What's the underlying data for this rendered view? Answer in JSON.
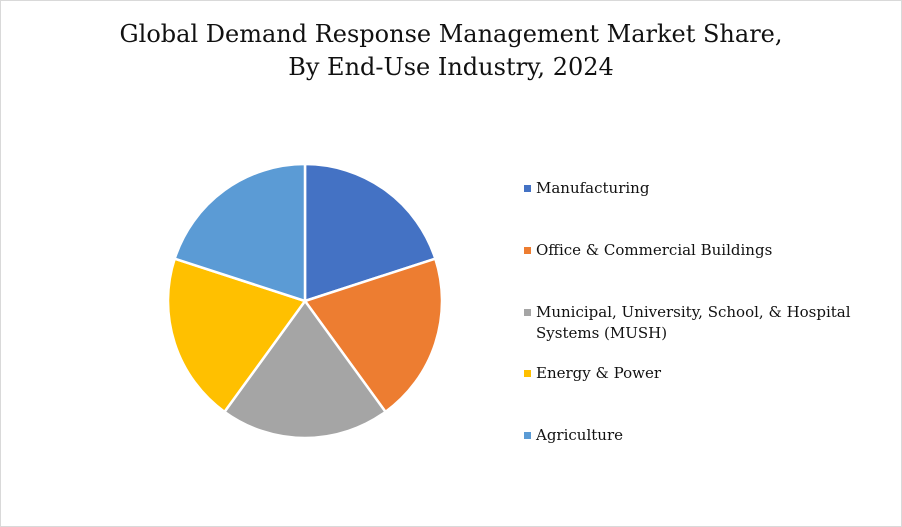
{
  "chart_data": {
    "type": "pie",
    "title": "Global Demand Response Management Market Share, By End-Use Industry, 2024",
    "title_lines": [
      "Global Demand Response Management Market Share,",
      "By End-Use Industry, 2024"
    ],
    "categories": [
      "Manufacturing",
      "Office & Commercial Buildings",
      "Municipal, University, School, & Hospital Systems (MUSH)",
      "Energy & Power",
      "Agriculture"
    ],
    "values": [
      20,
      20,
      20,
      20,
      20
    ],
    "colors": [
      "#4472C4",
      "#ED7D31",
      "#A5A5A5",
      "#FFC000",
      "#5B9BD5"
    ],
    "legend_position": "right",
    "grid": false
  }
}
